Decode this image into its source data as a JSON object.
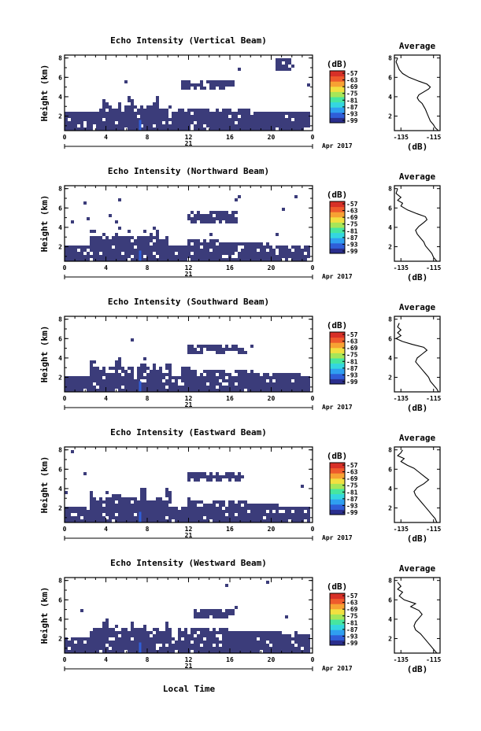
{
  "figure": {
    "date_label": "Apr 2017",
    "day_label": "21",
    "xlabel": "Local Time",
    "ylabel": "Height (km)",
    "colorbar_title": "(dB)",
    "colorbar_ticks": [
      "-57",
      "-63",
      "-69",
      "-75",
      "-81",
      "-87",
      "-93",
      "-99"
    ],
    "profile_title": "Average",
    "profile_xlabel": "(dB)"
  },
  "colors": {
    "fill": "#3b3c7a",
    "colormap": [
      "#2a2e8c",
      "#2f5ed8",
      "#2f9ff0",
      "#34d6e0",
      "#46e6a0",
      "#a6e658",
      "#f2e040",
      "#f7a233",
      "#ee5a2c",
      "#d73027"
    ]
  },
  "chart_data": [
    {
      "type": "heatmap",
      "title": "Echo Intensity (Vertical Beam)",
      "x": {
        "ticks": [
          "0",
          "4",
          "8",
          "12",
          "16",
          "20",
          "0"
        ],
        "range": [
          0,
          24
        ],
        "unit": "hour"
      },
      "y": {
        "ticks": [
          "2",
          "4",
          "6",
          "8"
        ],
        "range": [
          0.5,
          8.3
        ],
        "unit": "km"
      },
      "colorbar": {
        "range": [
          -99,
          -57
        ]
      },
      "cloud_regions": [
        {
          "x": [
            0,
            24
          ],
          "y": [
            0.5,
            2.4
          ],
          "note": "near-surface echo layer"
        },
        {
          "x": [
            3.5,
            10.5
          ],
          "y": [
            1.5,
            4.2
          ],
          "note": "convective columns"
        },
        {
          "x": [
            11,
            22
          ],
          "y": [
            2.0,
            3.0
          ],
          "note": "sloping layer"
        },
        {
          "x": [
            11.5,
            16.5
          ],
          "y": [
            4.8,
            5.7
          ],
          "note": "elevated layer"
        },
        {
          "x": [
            20.5,
            22.5
          ],
          "y": [
            6.7,
            7.9
          ],
          "note": "upper echo"
        }
      ],
      "profile": {
        "title": "Average",
        "xticks": [
          "-135",
          "-115"
        ],
        "xrange": [
          -139,
          -111
        ],
        "yticks": [
          "2",
          "4",
          "6",
          "8"
        ],
        "yrange": [
          0.5,
          8.3
        ],
        "points": [
          [
            -112,
            0.5
          ],
          [
            -114,
            0.8
          ],
          [
            -115,
            1.1
          ],
          [
            -117,
            1.5
          ],
          [
            -118,
            1.9
          ],
          [
            -119,
            2.3
          ],
          [
            -120,
            2.7
          ],
          [
            -121,
            3.0
          ],
          [
            -122,
            3.3
          ],
          [
            -124,
            3.6
          ],
          [
            -125,
            3.9
          ],
          [
            -124,
            4.2
          ],
          [
            -121,
            4.5
          ],
          [
            -118,
            4.8
          ],
          [
            -117,
            5.0
          ],
          [
            -119,
            5.3
          ],
          [
            -124,
            5.6
          ],
          [
            -130,
            6.0
          ],
          [
            -134,
            6.4
          ],
          [
            -136,
            6.8
          ],
          [
            -137,
            7.2
          ],
          [
            -138,
            7.6
          ],
          [
            -137,
            8.0
          ]
        ]
      }
    },
    {
      "type": "heatmap",
      "title": "Echo Intensity (Northward Beam)",
      "x": {
        "ticks": [
          "0",
          "4",
          "8",
          "12",
          "16",
          "20",
          "0"
        ],
        "range": [
          0,
          24
        ],
        "unit": "hour"
      },
      "y": {
        "ticks": [
          "2",
          "4",
          "6",
          "8"
        ],
        "range": [
          0.5,
          8.3
        ],
        "unit": "km"
      },
      "colorbar": {
        "range": [
          -99,
          -57
        ]
      },
      "cloud_regions": [
        {
          "x": [
            0,
            24
          ],
          "y": [
            0.5,
            2.2
          ],
          "note": "near-surface echo layer"
        },
        {
          "x": [
            2.5,
            10
          ],
          "y": [
            1.5,
            4.4
          ],
          "note": "convective columns"
        },
        {
          "x": [
            12,
            21.5
          ],
          "y": [
            2.0,
            2.8
          ],
          "note": "sloping layer"
        },
        {
          "x": [
            12,
            16.8
          ],
          "y": [
            4.5,
            5.6
          ],
          "note": "elevated layer"
        }
      ],
      "profile": {
        "title": "Average",
        "xticks": [
          "-135",
          "-115"
        ],
        "xrange": [
          -139,
          -111
        ],
        "yticks": [
          "2",
          "4",
          "6",
          "8"
        ],
        "yrange": [
          0.5,
          8.3
        ],
        "points": [
          [
            -113,
            0.5
          ],
          [
            -115,
            0.9
          ],
          [
            -116,
            1.3
          ],
          [
            -118,
            1.7
          ],
          [
            -120,
            2.1
          ],
          [
            -121,
            2.5
          ],
          [
            -123,
            2.9
          ],
          [
            -125,
            3.3
          ],
          [
            -126,
            3.7
          ],
          [
            -124,
            4.1
          ],
          [
            -121,
            4.5
          ],
          [
            -119,
            4.8
          ],
          [
            -120,
            5.1
          ],
          [
            -125,
            5.4
          ],
          [
            -131,
            5.8
          ],
          [
            -135,
            6.2
          ],
          [
            -134,
            6.5
          ],
          [
            -137,
            6.8
          ],
          [
            -135,
            7.1
          ],
          [
            -138,
            7.5
          ],
          [
            -137,
            8.0
          ]
        ]
      }
    },
    {
      "type": "heatmap",
      "title": "Echo Intensity (Southward Beam)",
      "x": {
        "ticks": [
          "0",
          "4",
          "8",
          "12",
          "16",
          "20",
          "0"
        ],
        "range": [
          0,
          24
        ],
        "unit": "hour"
      },
      "y": {
        "ticks": [
          "2",
          "4",
          "6",
          "8"
        ],
        "range": [
          0.5,
          8.3
        ],
        "unit": "km"
      },
      "colorbar": {
        "range": [
          -99,
          -57
        ]
      },
      "cloud_regions": [
        {
          "x": [
            0,
            24
          ],
          "y": [
            0.5,
            2.0
          ],
          "note": "near-surface echo layer"
        },
        {
          "x": [
            2.5,
            10.5
          ],
          "y": [
            1.5,
            4.3
          ],
          "note": "convective columns"
        },
        {
          "x": [
            11,
            23
          ],
          "y": [
            1.8,
            3.0
          ],
          "note": "sloping layer"
        },
        {
          "x": [
            12,
            17.5
          ],
          "y": [
            4.5,
            5.5
          ],
          "note": "elevated layer"
        }
      ],
      "profile": {
        "title": "Average",
        "xticks": [
          "-135",
          "-115"
        ],
        "xrange": [
          -139,
          -111
        ],
        "yticks": [
          "2",
          "4",
          "6",
          "8"
        ],
        "yrange": [
          0.5,
          8.3
        ],
        "points": [
          [
            -112,
            0.5
          ],
          [
            -113,
            0.8
          ],
          [
            -115,
            1.2
          ],
          [
            -117,
            1.6
          ],
          [
            -118,
            2.0
          ],
          [
            -120,
            2.4
          ],
          [
            -122,
            2.8
          ],
          [
            -124,
            3.2
          ],
          [
            -126,
            3.6
          ],
          [
            -125,
            4.0
          ],
          [
            -122,
            4.4
          ],
          [
            -119,
            4.8
          ],
          [
            -121,
            5.1
          ],
          [
            -128,
            5.4
          ],
          [
            -134,
            5.7
          ],
          [
            -138,
            6.0
          ],
          [
            -135,
            6.3
          ],
          [
            -137,
            6.6
          ],
          [
            -135,
            6.9
          ],
          [
            -137,
            7.2
          ],
          [
            -136,
            7.6
          ]
        ]
      }
    },
    {
      "type": "heatmap",
      "title": "Echo Intensity (Eastward Beam)",
      "x": {
        "ticks": [
          "0",
          "4",
          "8",
          "12",
          "16",
          "20",
          "0"
        ],
        "range": [
          0,
          24
        ],
        "unit": "hour"
      },
      "y": {
        "ticks": [
          "2",
          "4",
          "6",
          "8"
        ],
        "range": [
          0.5,
          8.3
        ],
        "unit": "km"
      },
      "colorbar": {
        "range": [
          -99,
          -57
        ]
      },
      "cloud_regions": [
        {
          "x": [
            0,
            24
          ],
          "y": [
            0.5,
            2.2
          ],
          "note": "near-surface echo layer"
        },
        {
          "x": [
            2.5,
            10.5
          ],
          "y": [
            1.5,
            4.5
          ],
          "note": "convective columns"
        },
        {
          "x": [
            12,
            21
          ],
          "y": [
            2.0,
            3.0
          ],
          "note": "sloping layer"
        },
        {
          "x": [
            12,
            17.5
          ],
          "y": [
            4.8,
            5.8
          ],
          "note": "elevated layer"
        }
      ],
      "profile": {
        "title": "Average",
        "xticks": [
          "-135",
          "-115"
        ],
        "xrange": [
          -139,
          -111
        ],
        "yticks": [
          "2",
          "4",
          "6",
          "8"
        ],
        "yrange": [
          0.5,
          8.3
        ],
        "points": [
          [
            -113,
            0.5
          ],
          [
            -114,
            0.9
          ],
          [
            -116,
            1.3
          ],
          [
            -118,
            1.7
          ],
          [
            -120,
            2.1
          ],
          [
            -122,
            2.5
          ],
          [
            -124,
            2.9
          ],
          [
            -126,
            3.3
          ],
          [
            -127,
            3.7
          ],
          [
            -125,
            4.1
          ],
          [
            -121,
            4.5
          ],
          [
            -118,
            4.9
          ],
          [
            -121,
            5.3
          ],
          [
            -124,
            5.7
          ],
          [
            -127,
            6.1
          ],
          [
            -131,
            6.4
          ],
          [
            -135,
            6.8
          ],
          [
            -133,
            7.1
          ],
          [
            -137,
            7.4
          ],
          [
            -135,
            7.7
          ],
          [
            -134,
            8.0
          ]
        ]
      }
    },
    {
      "type": "heatmap",
      "title": "Echo Intensity (Westward Beam)",
      "x": {
        "ticks": [
          "0",
          "4",
          "8",
          "12",
          "16",
          "20",
          "0"
        ],
        "range": [
          0,
          24
        ],
        "unit": "hour"
      },
      "y": {
        "ticks": [
          "2",
          "4",
          "6",
          "8"
        ],
        "range": [
          0.5,
          8.3
        ],
        "unit": "km"
      },
      "colorbar": {
        "range": [
          -99,
          -57
        ]
      },
      "cloud_regions": [
        {
          "x": [
            0,
            24
          ],
          "y": [
            0.5,
            2.0
          ],
          "note": "near-surface echo layer"
        },
        {
          "x": [
            2.5,
            10.5
          ],
          "y": [
            1.5,
            4.3
          ],
          "note": "convective columns"
        },
        {
          "x": [
            11,
            24
          ],
          "y": [
            1.8,
            3.2
          ],
          "note": "sloping layer"
        },
        {
          "x": [
            12.5,
            16.5
          ],
          "y": [
            4.2,
            5.0
          ],
          "note": "elevated layer"
        }
      ],
      "profile": {
        "title": "Average",
        "xticks": [
          "-135",
          "-115"
        ],
        "xrange": [
          -139,
          -111
        ],
        "yticks": [
          "2",
          "4",
          "6",
          "8"
        ],
        "yrange": [
          0.5,
          8.3
        ],
        "points": [
          [
            -113,
            0.5
          ],
          [
            -115,
            0.9
          ],
          [
            -117,
            1.3
          ],
          [
            -119,
            1.7
          ],
          [
            -121,
            2.1
          ],
          [
            -123,
            2.5
          ],
          [
            -126,
            2.9
          ],
          [
            -127,
            3.3
          ],
          [
            -126,
            3.7
          ],
          [
            -124,
            4.1
          ],
          [
            -122,
            4.5
          ],
          [
            -124,
            4.9
          ],
          [
            -129,
            5.3
          ],
          [
            -126,
            5.6
          ],
          [
            -133,
            6.0
          ],
          [
            -136,
            6.4
          ],
          [
            -134,
            6.8
          ],
          [
            -137,
            7.1
          ],
          [
            -135,
            7.4
          ],
          [
            -137,
            7.8
          ]
        ]
      }
    }
  ]
}
